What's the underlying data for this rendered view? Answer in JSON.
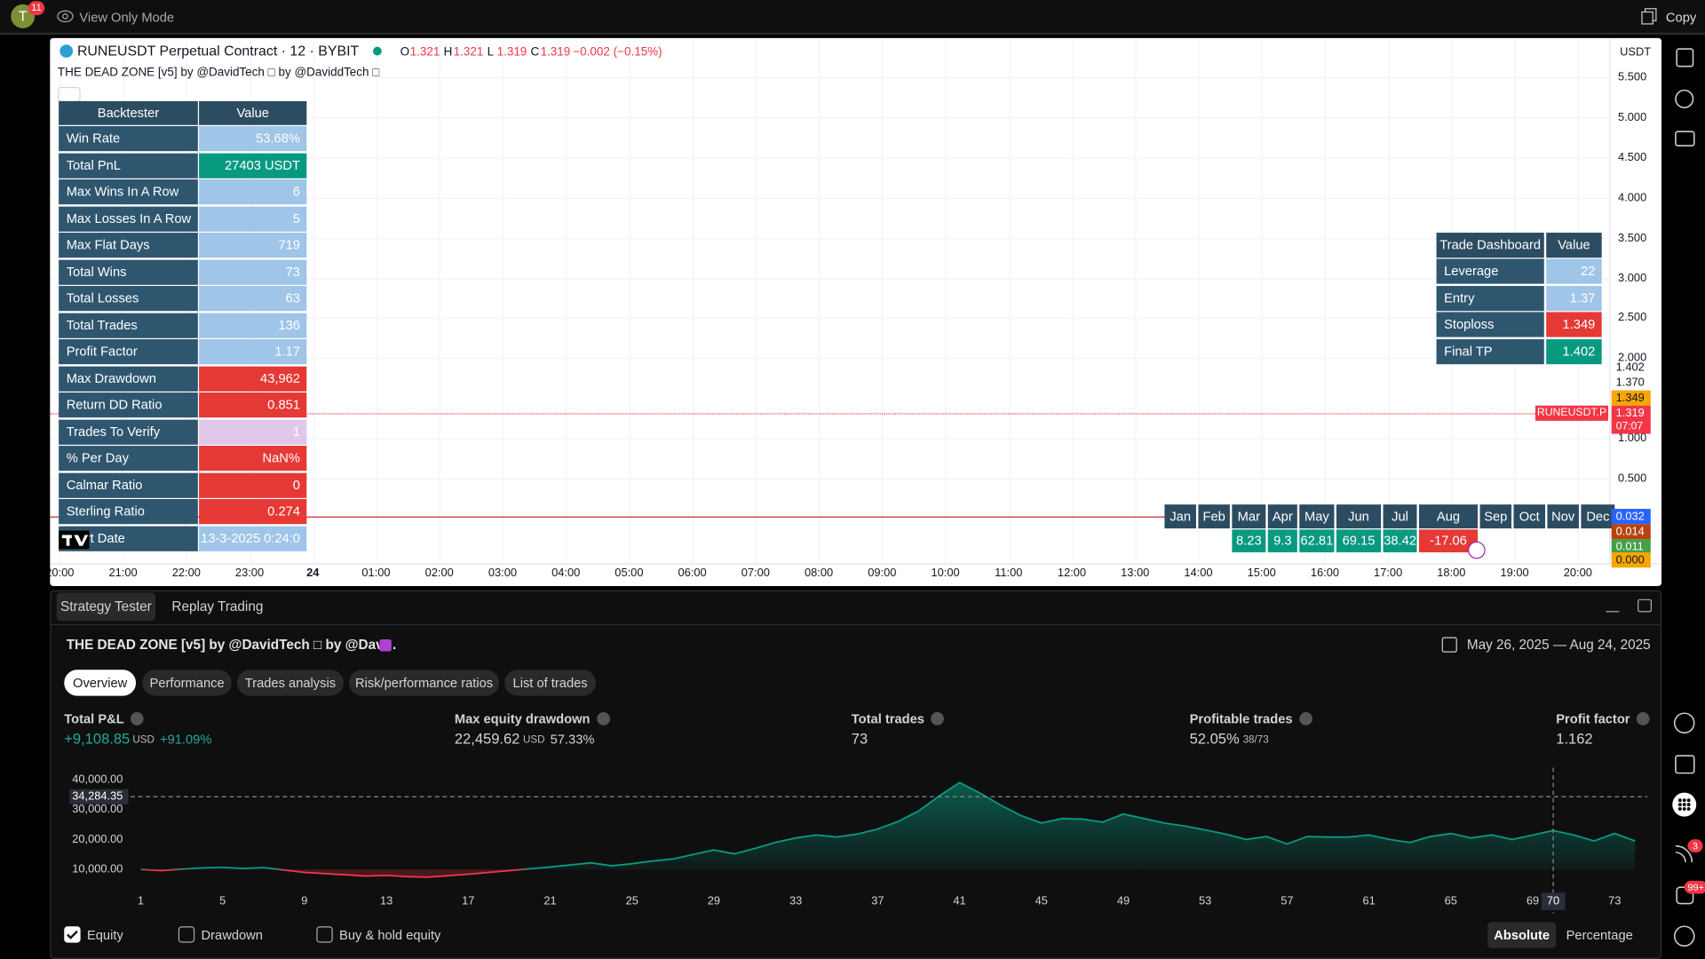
{
  "header": {
    "avatar": "T",
    "notifications": "11",
    "mode": "View Only Mode",
    "copy": "Copy"
  },
  "symbol": {
    "title": "RUNEUSDT Perpetual Contract · 12 · BYBIT",
    "ohlc": [
      {
        "key": "O",
        "value": "1.321"
      },
      {
        "key": "H",
        "value": "1.321"
      },
      {
        "key": "L",
        "value": "1.319"
      },
      {
        "key": "C",
        "value": "1.319"
      }
    ],
    "change": "−0.002 (−0.15%)",
    "indicator": "THE DEAD ZONE [v5] by @DavidTech □ by @DaviddTech □",
    "currency": "USDT"
  },
  "backtester": {
    "headers": [
      "Backtester",
      "Value"
    ],
    "rows": [
      {
        "label": "Win Rate",
        "value": "53.68%",
        "color": "#9fc5e8"
      },
      {
        "label": "Total PnL",
        "value": "27403 USDT",
        "color": "#089981"
      },
      {
        "label": "Max Wins In A Row",
        "value": "6",
        "color": "#9fc5e8"
      },
      {
        "label": "Max Losses In A Row",
        "value": "5",
        "color": "#9fc5e8"
      },
      {
        "label": "Max Flat Days",
        "value": "719",
        "color": "#9fc5e8"
      },
      {
        "label": "Total Wins",
        "value": "73",
        "color": "#9fc5e8"
      },
      {
        "label": "Total Losses",
        "value": "63",
        "color": "#9fc5e8"
      },
      {
        "label": "Total Trades",
        "value": "136",
        "color": "#9fc5e8"
      },
      {
        "label": "Profit Factor",
        "value": "1.17",
        "color": "#9fc5e8"
      },
      {
        "label": "Max Drawdown",
        "value": "43,962",
        "color": "#e53935"
      },
      {
        "label": "Return DD Ratio",
        "value": "0.851",
        "color": "#e53935"
      },
      {
        "label": "Trades To Verify",
        "value": "1",
        "color": "#e1c8ea"
      },
      {
        "label": "% Per Day",
        "value": "NaN%",
        "color": "#e53935"
      },
      {
        "label": "Calmar Ratio",
        "value": "0",
        "color": "#e53935"
      },
      {
        "label": "Sterling Ratio",
        "value": "0.274",
        "color": "#e53935"
      },
      {
        "label": "Start Date",
        "value": "13-3-2025 0:24:0",
        "color": "#9fc5e8"
      }
    ]
  },
  "trade_dashboard": {
    "headers": [
      "Trade Dashboard",
      "Value"
    ],
    "rows": [
      {
        "label": "Leverage",
        "value": "22",
        "color": "#9fc5e8"
      },
      {
        "label": "Entry",
        "value": "1.37",
        "color": "#9fc5e8"
      },
      {
        "label": "Stoploss",
        "value": "1.349",
        "color": "#e53935"
      },
      {
        "label": "Final TP",
        "value": "1.402",
        "color": "#089981"
      }
    ]
  },
  "monthly": {
    "months": [
      "Jan",
      "Feb",
      "Mar",
      "Apr",
      "May",
      "Jun",
      "Jul",
      "Aug",
      "Sep",
      "Oct",
      "Nov",
      "Dec"
    ],
    "values": [
      null,
      null,
      "8.23",
      "9.3",
      "62.81",
      "69.15",
      "38.42",
      "-17.06",
      null,
      null,
      null,
      null
    ],
    "colors": [
      null,
      null,
      "#089981",
      "#089981",
      "#089981",
      "#089981",
      "#089981",
      "#e53935",
      null,
      null,
      null,
      null
    ]
  },
  "price_axis": {
    "ticks": [
      "5.500",
      "5.000",
      "4.500",
      "4.000",
      "3.500",
      "3.000",
      "2.500",
      "2.000",
      "1.000",
      "0.500"
    ],
    "markers": [
      {
        "label": "1.402",
        "bg": null,
        "fg": "#131722"
      },
      {
        "label": "1.370",
        "bg": null,
        "fg": "#131722"
      },
      {
        "label": "1.349",
        "bg": "#f7a600",
        "fg": "#131722"
      },
      {
        "label": "1.319",
        "bg": "#f23645",
        "fg": "#ffffff"
      },
      {
        "label": "0.032",
        "bg": "#2962ff",
        "fg": "#ffffff"
      },
      {
        "label": "0.014",
        "bg": "#b8420f",
        "fg": "#ffffff"
      },
      {
        "label": "0.011",
        "bg": "#43a047",
        "fg": "#ffffff"
      },
      {
        "label": "0.000",
        "bg": "#f7a600",
        "fg": "#131722"
      }
    ],
    "symbol_tag": "RUNEUSDT.P",
    "countdown": "07:07"
  },
  "time_axis": [
    "20:00",
    "21:00",
    "22:00",
    "23:00",
    "24",
    "01:00",
    "02:00",
    "03:00",
    "04:00",
    "05:00",
    "06:00",
    "07:00",
    "08:00",
    "09:00",
    "10:00",
    "11:00",
    "12:00",
    "13:00",
    "14:00",
    "15:00",
    "16:00",
    "17:00",
    "18:00",
    "19:00",
    "20:00"
  ],
  "toolbar": {
    "badges": [
      "3",
      "99+"
    ]
  },
  "tester": {
    "tabs": [
      "Strategy Tester",
      "Replay Trading"
    ],
    "strategy": "THE DEAD ZONE [v5] by @DavidTech □ by @Dav…",
    "date_range": "May 26, 2025 — Aug 24, 2025",
    "subtabs": [
      "Overview",
      "Performance",
      "Trades analysis",
      "Risk/performance ratios",
      "List of trades"
    ],
    "metrics": [
      {
        "label": "Total P&L",
        "value": "+9,108.85",
        "unit": "USD",
        "extra": "+91.09%",
        "color": "#22ab94"
      },
      {
        "label": "Max equity drawdown",
        "value": "22,459.62",
        "unit": "USD",
        "extra": "57.33%",
        "color": "#d1d4dc"
      },
      {
        "label": "Total trades",
        "value": "73",
        "color": "#d1d4dc"
      },
      {
        "label": "Profitable trades",
        "value": "52.05%",
        "extra": "38/73",
        "color": "#d1d4dc"
      },
      {
        "label": "Profit factor",
        "value": "1.162",
        "color": "#d1d4dc"
      }
    ],
    "toggles": [
      {
        "label": "Drawdown",
        "checked": false
      },
      {
        "label": "Buy & hold equity",
        "checked": false
      }
    ],
    "modes": [
      "Absolute",
      "Percentage"
    ]
  },
  "chart_data": {
    "type": "line",
    "x": [
      1,
      2,
      3,
      4,
      5,
      6,
      7,
      8,
      9,
      10,
      11,
      12,
      13,
      14,
      15,
      16,
      17,
      18,
      19,
      20,
      21,
      22,
      23,
      24,
      25,
      26,
      27,
      28,
      29,
      30,
      31,
      32,
      33,
      34,
      35,
      36,
      37,
      38,
      39,
      40,
      41,
      42,
      43,
      44,
      45,
      46,
      47,
      48,
      49,
      50,
      51,
      52,
      53,
      54,
      55,
      56,
      57,
      58,
      59,
      60,
      61,
      62,
      63,
      64,
      65,
      66,
      67,
      68,
      69,
      70,
      71,
      72,
      73,
      74
    ],
    "series": [
      {
        "name": "Equity",
        "values": [
          10000,
          9600,
          10100,
          10500,
          10700,
          10300,
          10600,
          9800,
          9000,
          8600,
          8200,
          7800,
          8000,
          7600,
          7400,
          7900,
          8400,
          9000,
          9600,
          10200,
          10800,
          11500,
          12200,
          11200,
          11900,
          12800,
          13500,
          15000,
          16500,
          15200,
          17000,
          19000,
          20500,
          21500,
          20800,
          21800,
          23500,
          26000,
          29500,
          34500,
          39000,
          35500,
          31500,
          28000,
          25500,
          27000,
          26800,
          25800,
          28500,
          27000,
          25500,
          24500,
          23200,
          21800,
          20000,
          21000,
          18500,
          21000,
          20800,
          20800,
          21500,
          20000,
          19000,
          21000,
          22000,
          20500,
          21500,
          20000,
          21500,
          23000,
          21500,
          19500,
          22000,
          19500
        ]
      }
    ],
    "color": "#089981",
    "negative_color": "#f23645",
    "xlim": [
      0.5,
      74.6
    ],
    "ylim": [
      5500,
      44000
    ],
    "xticks": [
      1,
      5,
      9,
      13,
      17,
      21,
      25,
      29,
      33,
      37,
      41,
      45,
      49,
      53,
      57,
      61,
      65,
      69,
      73
    ],
    "yticks": [
      {
        "value": 10000,
        "label": "10,000.00"
      },
      {
        "value": 20000,
        "label": "20,000.00"
      },
      {
        "value": 30000,
        "label": "30,000.00"
      },
      {
        "value": 40000,
        "label": "40,000.00"
      }
    ],
    "crosshair": {
      "x": 70,
      "y": {
        "value": 34284.35,
        "label": "34,284.35"
      }
    }
  }
}
